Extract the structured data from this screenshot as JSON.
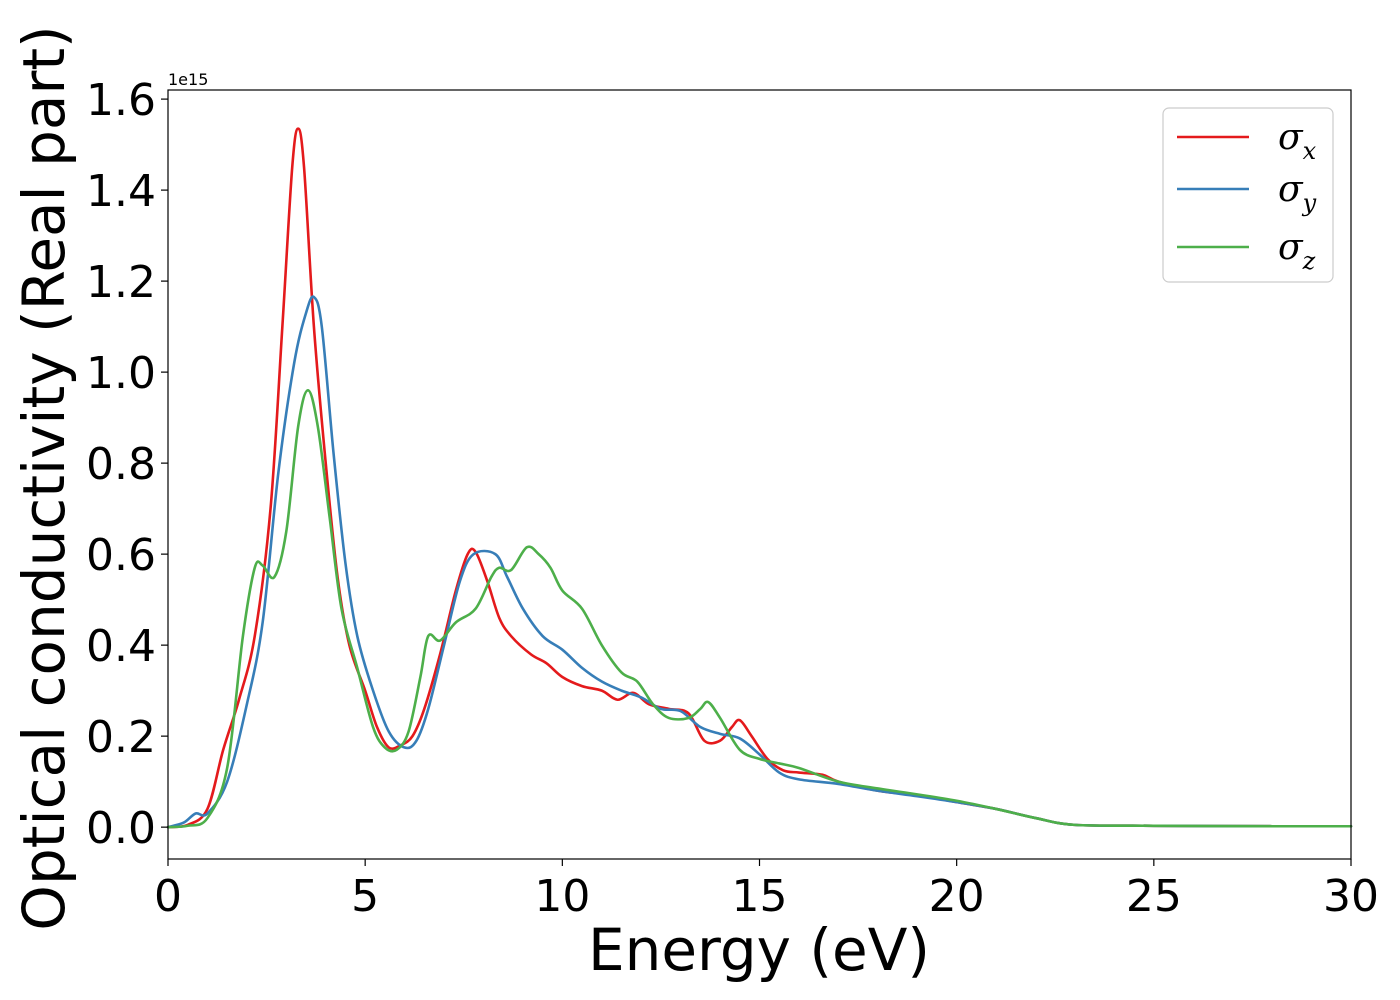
{
  "chart_data": {
    "type": "line",
    "xlabel": "Energy (eV)",
    "ylabel": "Optical conductivity (Real part)",
    "y_offset_label": "1e15",
    "xlim": [
      0,
      30
    ],
    "ylim": [
      -0.07,
      1.62
    ],
    "xticks": [
      0,
      5,
      10,
      15,
      20,
      25,
      30
    ],
    "xtick_labels": [
      "0",
      "5",
      "10",
      "15",
      "20",
      "25",
      "30"
    ],
    "yticks": [
      0.0,
      0.2,
      0.4,
      0.6,
      0.8,
      1.0,
      1.2,
      1.4,
      1.6
    ],
    "ytick_labels": [
      "0.0",
      "0.2",
      "0.4",
      "0.6",
      "0.8",
      "1.0",
      "1.2",
      "1.4",
      "1.6"
    ],
    "grid": false,
    "legend_position": "top-right",
    "series": [
      {
        "name": "σx",
        "legend_base": "σ",
        "legend_sub": "x",
        "color": "#e41a1c",
        "points": [
          [
            0,
            0
          ],
          [
            0.5,
            0.005
          ],
          [
            1,
            0.04
          ],
          [
            1.4,
            0.17
          ],
          [
            1.8,
            0.28
          ],
          [
            2.2,
            0.42
          ],
          [
            2.6,
            0.7
          ],
          [
            2.9,
            1.1
          ],
          [
            3.15,
            1.45
          ],
          [
            3.3,
            1.535
          ],
          [
            3.45,
            1.45
          ],
          [
            3.7,
            1.1
          ],
          [
            4,
            0.8
          ],
          [
            4.3,
            0.55
          ],
          [
            4.6,
            0.4
          ],
          [
            5,
            0.3
          ],
          [
            5.3,
            0.22
          ],
          [
            5.6,
            0.175
          ],
          [
            5.9,
            0.18
          ],
          [
            6.2,
            0.2
          ],
          [
            6.5,
            0.26
          ],
          [
            6.9,
            0.38
          ],
          [
            7.3,
            0.52
          ],
          [
            7.6,
            0.6
          ],
          [
            7.8,
            0.605
          ],
          [
            8.1,
            0.54
          ],
          [
            8.4,
            0.46
          ],
          [
            8.7,
            0.42
          ],
          [
            9.2,
            0.38
          ],
          [
            9.6,
            0.36
          ],
          [
            10,
            0.33
          ],
          [
            10.5,
            0.31
          ],
          [
            11,
            0.3
          ],
          [
            11.4,
            0.28
          ],
          [
            11.8,
            0.295
          ],
          [
            12.2,
            0.27
          ],
          [
            12.7,
            0.26
          ],
          [
            13.2,
            0.25
          ],
          [
            13.6,
            0.19
          ],
          [
            14,
            0.19
          ],
          [
            14.3,
            0.22
          ],
          [
            14.5,
            0.235
          ],
          [
            14.8,
            0.2
          ],
          [
            15.2,
            0.15
          ],
          [
            15.6,
            0.125
          ],
          [
            16,
            0.12
          ],
          [
            16.6,
            0.115
          ],
          [
            17,
            0.1
          ],
          [
            18,
            0.08
          ],
          [
            19,
            0.07
          ],
          [
            20,
            0.055
          ],
          [
            21,
            0.04
          ],
          [
            22,
            0.02
          ],
          [
            23,
            0.005
          ],
          [
            25,
            0.003
          ],
          [
            28,
            0.002
          ],
          [
            30,
            0.002
          ]
        ]
      },
      {
        "name": "σy",
        "legend_base": "σ",
        "legend_sub": "y",
        "color": "#377eb8",
        "points": [
          [
            0,
            0
          ],
          [
            0.4,
            0.01
          ],
          [
            0.7,
            0.03
          ],
          [
            1,
            0.03
          ],
          [
            1.5,
            0.1
          ],
          [
            2,
            0.27
          ],
          [
            2.4,
            0.45
          ],
          [
            2.8,
            0.78
          ],
          [
            3.2,
            1.02
          ],
          [
            3.5,
            1.13
          ],
          [
            3.7,
            1.165
          ],
          [
            3.9,
            1.1
          ],
          [
            4.2,
            0.82
          ],
          [
            4.5,
            0.58
          ],
          [
            4.8,
            0.42
          ],
          [
            5.2,
            0.3
          ],
          [
            5.6,
            0.21
          ],
          [
            6,
            0.175
          ],
          [
            6.3,
            0.19
          ],
          [
            6.6,
            0.26
          ],
          [
            7,
            0.4
          ],
          [
            7.4,
            0.54
          ],
          [
            7.75,
            0.6
          ],
          [
            8.3,
            0.6
          ],
          [
            8.6,
            0.55
          ],
          [
            9,
            0.48
          ],
          [
            9.5,
            0.42
          ],
          [
            10,
            0.39
          ],
          [
            10.5,
            0.35
          ],
          [
            11,
            0.32
          ],
          [
            11.5,
            0.3
          ],
          [
            12,
            0.285
          ],
          [
            12.5,
            0.26
          ],
          [
            13,
            0.255
          ],
          [
            13.5,
            0.22
          ],
          [
            14,
            0.205
          ],
          [
            14.5,
            0.195
          ],
          [
            15,
            0.16
          ],
          [
            15.5,
            0.12
          ],
          [
            16,
            0.105
          ],
          [
            17,
            0.095
          ],
          [
            18,
            0.08
          ],
          [
            19,
            0.068
          ],
          [
            20,
            0.055
          ],
          [
            21,
            0.04
          ],
          [
            22,
            0.02
          ],
          [
            23,
            0.005
          ],
          [
            25,
            0.003
          ],
          [
            28,
            0.002
          ],
          [
            30,
            0.002
          ]
        ]
      },
      {
        "name": "σz",
        "legend_base": "σ",
        "legend_sub": "z",
        "color": "#4daf4a",
        "points": [
          [
            0,
            0
          ],
          [
            0.5,
            0.003
          ],
          [
            1,
            0.02
          ],
          [
            1.5,
            0.13
          ],
          [
            1.9,
            0.42
          ],
          [
            2.2,
            0.57
          ],
          [
            2.4,
            0.575
          ],
          [
            2.7,
            0.55
          ],
          [
            3,
            0.65
          ],
          [
            3.3,
            0.88
          ],
          [
            3.55,
            0.96
          ],
          [
            3.8,
            0.88
          ],
          [
            4.1,
            0.68
          ],
          [
            4.4,
            0.48
          ],
          [
            4.8,
            0.35
          ],
          [
            5.2,
            0.22
          ],
          [
            5.5,
            0.175
          ],
          [
            5.8,
            0.17
          ],
          [
            6.1,
            0.21
          ],
          [
            6.4,
            0.33
          ],
          [
            6.6,
            0.42
          ],
          [
            6.9,
            0.41
          ],
          [
            7.3,
            0.45
          ],
          [
            7.8,
            0.48
          ],
          [
            8.2,
            0.55
          ],
          [
            8.4,
            0.57
          ],
          [
            8.7,
            0.565
          ],
          [
            9.1,
            0.615
          ],
          [
            9.4,
            0.6
          ],
          [
            9.7,
            0.57
          ],
          [
            10,
            0.52
          ],
          [
            10.5,
            0.48
          ],
          [
            11,
            0.4
          ],
          [
            11.5,
            0.34
          ],
          [
            11.9,
            0.32
          ],
          [
            12.3,
            0.27
          ],
          [
            12.7,
            0.24
          ],
          [
            13.2,
            0.24
          ],
          [
            13.5,
            0.26
          ],
          [
            13.7,
            0.275
          ],
          [
            14,
            0.24
          ],
          [
            14.5,
            0.17
          ],
          [
            15,
            0.15
          ],
          [
            15.5,
            0.14
          ],
          [
            16,
            0.13
          ],
          [
            17,
            0.1
          ],
          [
            18,
            0.085
          ],
          [
            19,
            0.072
          ],
          [
            20,
            0.058
          ],
          [
            21,
            0.04
          ],
          [
            22,
            0.02
          ],
          [
            23,
            0.005
          ],
          [
            25,
            0.003
          ],
          [
            28,
            0.002
          ],
          [
            30,
            0.002
          ]
        ]
      }
    ]
  }
}
